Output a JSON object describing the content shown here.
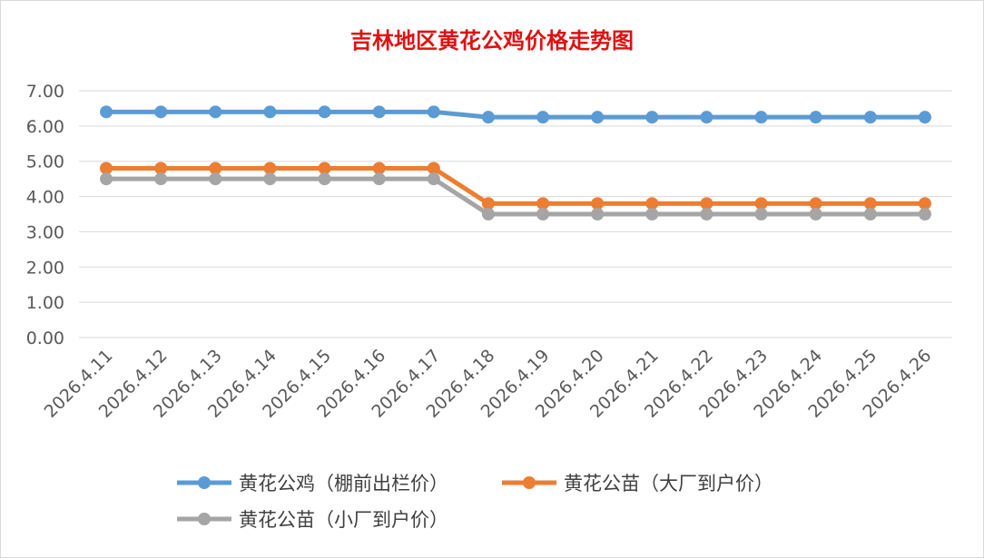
{
  "chart_data": {
    "type": "line",
    "title": "吉林地区黄花公鸡价格走势图",
    "xlabel": "",
    "ylabel": "",
    "ylim": [
      0,
      7
    ],
    "y_ticks": [
      "0.00",
      "1.00",
      "2.00",
      "3.00",
      "4.00",
      "5.00",
      "6.00",
      "7.00"
    ],
    "grid": "horizontal",
    "legend_position": "bottom",
    "categories": [
      "2026.4.11",
      "2026.4.12",
      "2026.4.13",
      "2026.4.14",
      "2026.4.15",
      "2026.4.16",
      "2026.4.17",
      "2026.4.18",
      "2026.4.19",
      "2026.4.20",
      "2026.4.21",
      "2026.4.22",
      "2026.4.23",
      "2026.4.24",
      "2026.4.25",
      "2026.4.26"
    ],
    "series": [
      {
        "name": "黄花公鸡（棚前出栏价）",
        "color": "#5b9bd5",
        "values": [
          6.4,
          6.4,
          6.4,
          6.4,
          6.4,
          6.4,
          6.4,
          6.25,
          6.25,
          6.25,
          6.25,
          6.25,
          6.25,
          6.25,
          6.25,
          6.25
        ]
      },
      {
        "name": "黄花公苗（大厂到户价）",
        "color": "#ed7d31",
        "values": [
          4.8,
          4.8,
          4.8,
          4.8,
          4.8,
          4.8,
          4.8,
          3.8,
          3.8,
          3.8,
          3.8,
          3.8,
          3.8,
          3.8,
          3.8,
          3.8
        ]
      },
      {
        "name": "黄花公苗（小厂到户价）",
        "color": "#a5a5a5",
        "values": [
          4.5,
          4.5,
          4.5,
          4.5,
          4.5,
          4.5,
          4.5,
          3.5,
          3.5,
          3.5,
          3.5,
          3.5,
          3.5,
          3.5,
          3.5,
          3.5
        ]
      }
    ]
  }
}
